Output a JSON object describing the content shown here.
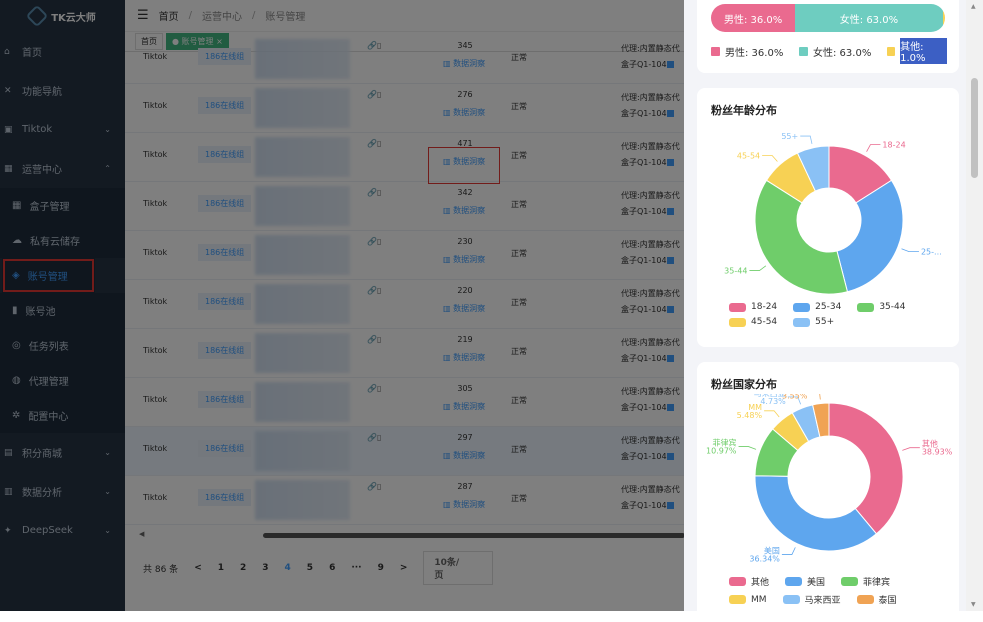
{
  "app": {
    "title": "TK云大师"
  },
  "sidebar": {
    "items": [
      {
        "label": "首页",
        "icon": "home-icon"
      },
      {
        "label": "功能导航",
        "icon": "nav-icon"
      },
      {
        "label": "Tiktok",
        "icon": "tiktok-icon",
        "chevron": "down"
      },
      {
        "label": "运营中心",
        "icon": "grid-icon",
        "chevron": "up"
      }
    ],
    "sub_items": [
      {
        "label": "盒子管理",
        "icon": "grid-icon"
      },
      {
        "label": "私有云储存",
        "icon": "cloud-icon"
      },
      {
        "label": "账号管理",
        "icon": "account-icon",
        "active": true
      },
      {
        "label": "账号池",
        "icon": "bar-icon"
      },
      {
        "label": "任务列表",
        "icon": "task-icon"
      },
      {
        "label": "代理管理",
        "icon": "globe-icon"
      },
      {
        "label": "配置中心",
        "icon": "gear-icon"
      }
    ],
    "bottom_items": [
      {
        "label": "积分商城",
        "icon": "shop-icon",
        "chevron": "down"
      },
      {
        "label": "数据分析",
        "icon": "chart-icon",
        "chevron": "down"
      },
      {
        "label": "DeepSeek",
        "icon": "ai-icon",
        "chevron": "down"
      }
    ]
  },
  "header": {
    "breadcrumb": [
      "首页",
      "运营中心",
      "账号管理"
    ],
    "separator": "/"
  },
  "tabs": [
    {
      "label": "首页"
    },
    {
      "label": "账号管理",
      "active": true,
      "close": "×"
    }
  ],
  "table": {
    "insight_label": "数据洞察",
    "rows": [
      {
        "platform": "Tiktok",
        "group": "186在线组",
        "count": "345",
        "status": "正常",
        "proxy": "代理:内置静态代",
        "box": "盒子Q1-104"
      },
      {
        "platform": "Tiktok",
        "group": "186在线组",
        "count": "276",
        "status": "正常",
        "proxy": "代理:内置静态代",
        "box": "盒子Q1-104"
      },
      {
        "platform": "Tiktok",
        "group": "186在线组",
        "count": "471",
        "status": "正常",
        "proxy": "代理:内置静态代",
        "box": "盒子Q1-104"
      },
      {
        "platform": "Tiktok",
        "group": "186在线组",
        "count": "342",
        "status": "正常",
        "proxy": "代理:内置静态代",
        "box": "盒子Q1-104"
      },
      {
        "platform": "Tiktok",
        "group": "186在线组",
        "count": "230",
        "status": "正常",
        "proxy": "代理:内置静态代",
        "box": "盒子Q1-104"
      },
      {
        "platform": "Tiktok",
        "group": "186在线组",
        "count": "220",
        "status": "正常",
        "proxy": "代理:内置静态代",
        "box": "盒子Q1-104"
      },
      {
        "platform": "Tiktok",
        "group": "186在线组",
        "count": "219",
        "status": "正常",
        "proxy": "代理:内置静态代",
        "box": "盒子Q1-104"
      },
      {
        "platform": "Tiktok",
        "group": "186在线组",
        "count": "305",
        "status": "正常",
        "proxy": "代理:内置静态代",
        "box": "盒子Q1-104"
      },
      {
        "platform": "Tiktok",
        "group": "186在线组",
        "count": "297",
        "status": "正常",
        "proxy": "代理:内置静态代",
        "box": "盒子Q1-104"
      },
      {
        "platform": "Tiktok",
        "group": "186在线组",
        "count": "287",
        "status": "正常",
        "proxy": "代理:内置静态代",
        "box": "盒子Q1-104"
      }
    ]
  },
  "pagination": {
    "total": "共 86 条",
    "prev": "<",
    "next": ">",
    "pages": [
      "1",
      "2",
      "3",
      "4",
      "5",
      "6",
      "···",
      "9"
    ],
    "current": "4",
    "page_size": "10条/页"
  },
  "drawer": {
    "gender": {
      "bar": [
        {
          "label": "男性: 36.0%",
          "value": 36.0,
          "color": "#ea6a8f"
        },
        {
          "label": "女性: 63.0%",
          "value": 63.0,
          "color": "#6ecdc0"
        },
        {
          "label": "其他: 1.0%",
          "value": 1.0,
          "color": "#f7d154"
        }
      ]
    },
    "age": {
      "title": "粉丝年龄分布",
      "short_labels": {
        "25-34": "25-..."
      }
    },
    "country": {
      "title": "粉丝国家分布"
    }
  },
  "chart_data": [
    {
      "type": "pie",
      "title": "粉丝年龄分布",
      "donut": true,
      "categories": [
        "18-24",
        "25-34",
        "35-44",
        "45-54",
        "55+"
      ],
      "values": [
        16,
        30,
        38,
        9,
        7
      ],
      "colors": [
        "#ea6a8f",
        "#5ea6ee",
        "#6fcd6a",
        "#f7d154",
        "#8ac1f5"
      ],
      "legend": "bottom"
    },
    {
      "type": "pie",
      "title": "粉丝国家分布",
      "donut": true,
      "categories": [
        "其他",
        "美国",
        "菲律宾",
        "MM",
        "马来西亚",
        "泰国"
      ],
      "values": [
        38.93,
        36.34,
        10.97,
        5.48,
        4.73,
        3.55
      ],
      "labels": [
        "38.93%",
        "36.34%",
        "10.97%",
        "5.48%",
        "4.73%",
        "3.55%"
      ],
      "colors": [
        "#ea6a8f",
        "#5ea6ee",
        "#6fcd6a",
        "#f7d154",
        "#8ac1f5",
        "#f0a354"
      ],
      "legend": "bottom"
    }
  ]
}
